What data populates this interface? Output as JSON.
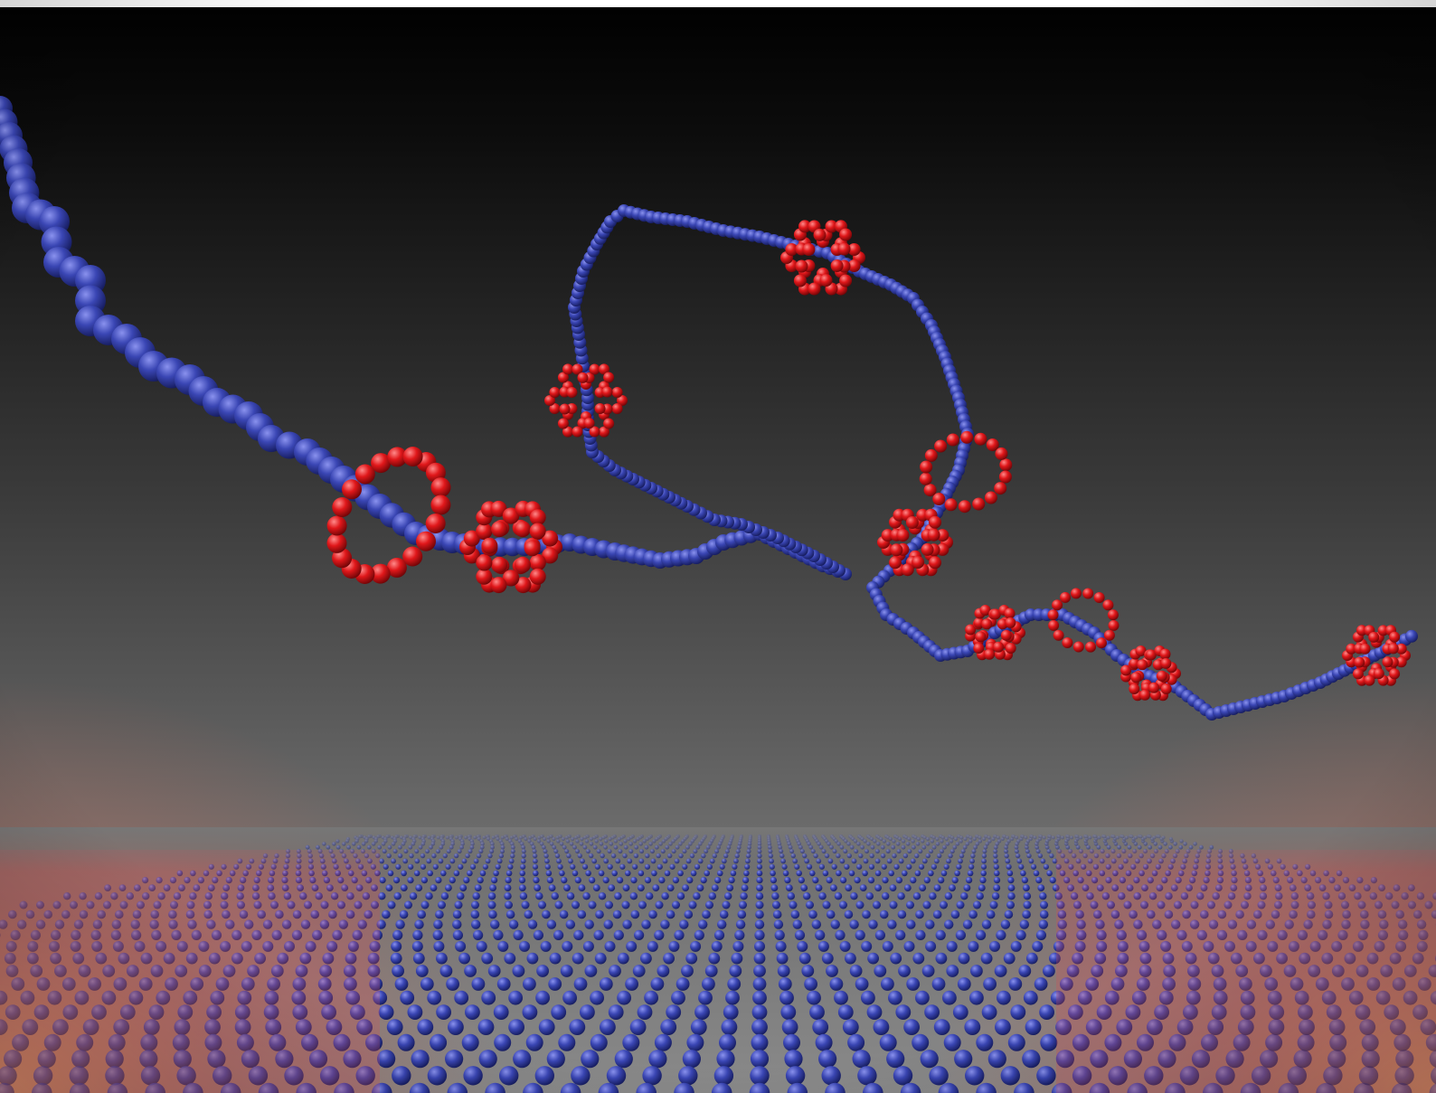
{
  "image": {
    "kind": "3d-render",
    "subject": "molecular-chain-with-rings-over-bead-lattice"
  },
  "colors": {
    "backdrop_top": "#020202",
    "backdrop_mid": "#3a3a3a",
    "backdrop_bottom": "#7d7d7d",
    "chain_blue": "#3a46b4",
    "chain_blue_light": "#7880e0",
    "chain_blue_dark": "#151c5e",
    "ring_red": "#e0171a",
    "ring_red_light": "#ff7a7a",
    "ring_red_dark": "#7a0608",
    "glow": "#ff9a5a"
  }
}
